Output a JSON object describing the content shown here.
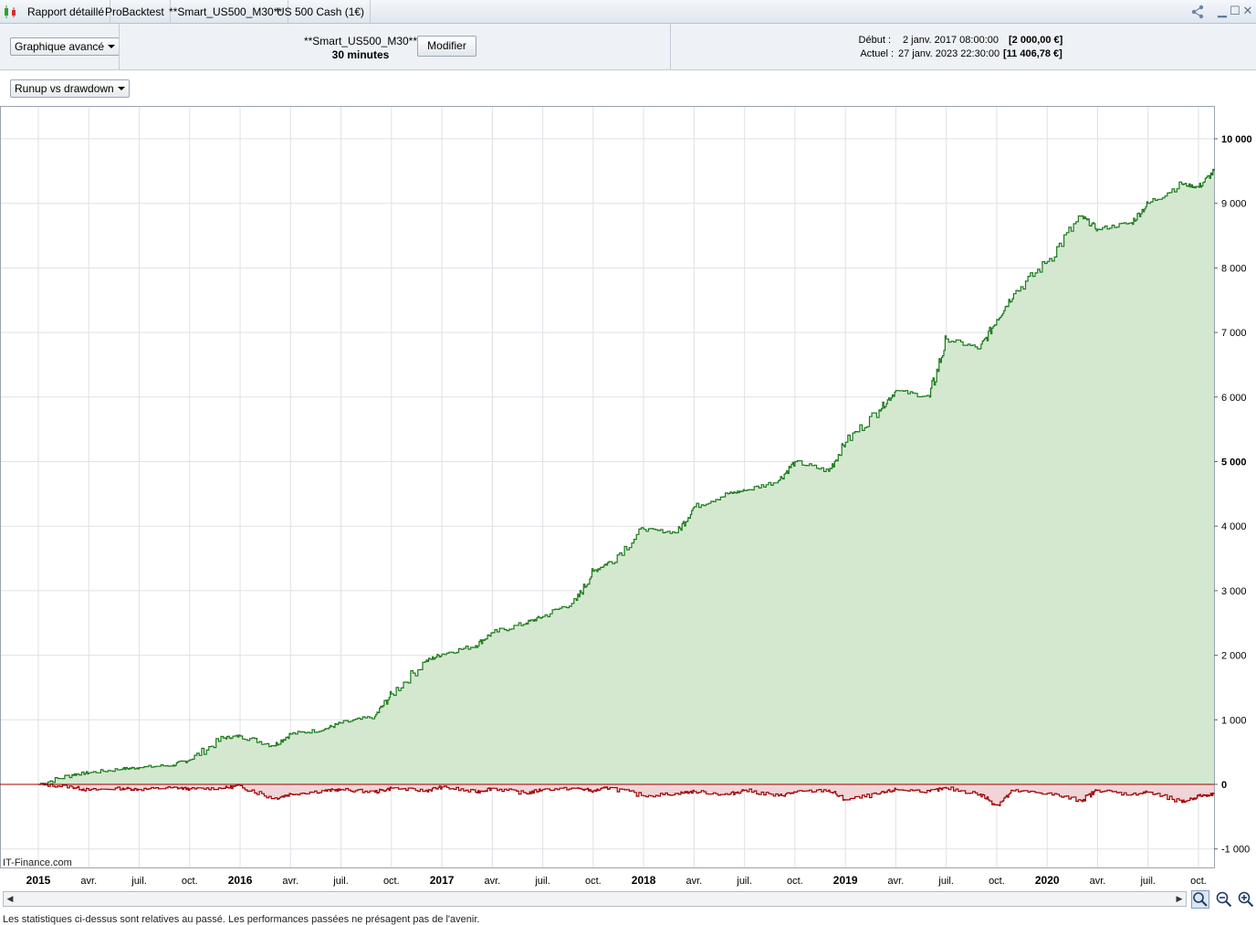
{
  "tabs": [
    "Rapport détaillé",
    "ProBacktest",
    "**Smart_US500_M30**",
    "US 500 Cash (1€)"
  ],
  "window": {
    "share_icon": "share-icon",
    "minimize_icon": "minimize-icon",
    "maximize_icon": "maximize-icon",
    "close_icon": "close-icon"
  },
  "toolbar": {
    "chart_mode": "Graphique avancé",
    "strategy_name": "**Smart_US500_M30**",
    "timeframe": "30 minutes",
    "modify_label": "Modifier",
    "start_label": "Début :",
    "start_date": "2 janv. 2017 08:00:00",
    "start_capital": "[2 000,00 €]",
    "current_label": "Actuel :",
    "current_date": "27 janv. 2023 22:30:00",
    "current_capital": "[11 406,78 €]"
  },
  "chart_selector": "Runup vs drawdown",
  "watermark": "IT-Finance.com",
  "disclaimer": "Les statistiques ci-dessus sont relatives au passé. Les performances passées ne présagent pas de l'avenir.",
  "colors": {
    "runup_line": "#1a7a1a",
    "runup_fill": "#d4e8d0",
    "drawdown_line": "#a00000",
    "drawdown_fill": "#f0d4d8",
    "grid": "#dde2e7"
  },
  "chart_data": {
    "type": "area",
    "title": "Runup vs drawdown",
    "y_tick_labels": [
      "10 000",
      "9 000",
      "8 000",
      "7 000",
      "6 000",
      "5 000",
      "4 000",
      "3 000",
      "2 000",
      "1 000",
      "0",
      "-1 000"
    ],
    "y_bold_labels": [
      "10 000",
      "5 000",
      "0"
    ],
    "ylim": [
      -1000,
      10000
    ],
    "x_tick_labels": [
      "2015",
      "avr.",
      "juil.",
      "oct.",
      "2016",
      "avr.",
      "juil.",
      "oct.",
      "2017",
      "avr.",
      "juil.",
      "oct.",
      "2018",
      "avr.",
      "juil.",
      "oct.",
      "2019",
      "avr.",
      "juil.",
      "oct.",
      "2020",
      "avr.",
      "juil.",
      "oct."
    ],
    "x_bold_labels": [
      "2015",
      "2016",
      "2017",
      "2018",
      "2019",
      "2020"
    ],
    "grid": true,
    "series": [
      {
        "name": "Runup",
        "x": [
          "2015-01",
          "2015-03",
          "2015-04",
          "2015-06",
          "2015-07",
          "2015-09",
          "2015-10",
          "2015-12",
          "2016-01",
          "2016-03",
          "2016-04",
          "2016-06",
          "2016-07",
          "2016-09",
          "2016-10",
          "2016-12",
          "2017-01",
          "2017-03",
          "2017-04",
          "2017-06",
          "2017-07",
          "2017-09",
          "2017-10",
          "2017-11",
          "2018-01",
          "2018-03",
          "2018-04",
          "2018-06",
          "2018-07",
          "2018-09",
          "2018-10",
          "2018-12",
          "2019-01",
          "2019-03",
          "2019-04",
          "2019-06",
          "2019-07",
          "2019-09",
          "2019-10",
          "2019-11",
          "2020-01",
          "2020-03",
          "2020-04",
          "2020-06",
          "2020-07",
          "2020-09",
          "2020-10",
          "2020-11"
        ],
        "values": [
          0,
          150,
          180,
          240,
          260,
          300,
          380,
          720,
          750,
          600,
          780,
          850,
          950,
          1050,
          1400,
          1900,
          2020,
          2150,
          2350,
          2500,
          2600,
          2850,
          3300,
          3450,
          3950,
          3900,
          4300,
          4500,
          4550,
          4700,
          5000,
          4850,
          5300,
          5800,
          6100,
          6000,
          6900,
          6750,
          7200,
          7600,
          8100,
          8800,
          8600,
          8700,
          9000,
          9300,
          9250,
          9500
        ]
      },
      {
        "name": "Drawdown",
        "x": [
          "2015-01",
          "2015-03",
          "2015-04",
          "2015-06",
          "2015-07",
          "2015-09",
          "2015-10",
          "2015-12",
          "2016-01",
          "2016-03",
          "2016-04",
          "2016-06",
          "2016-07",
          "2016-09",
          "2016-10",
          "2016-12",
          "2017-01",
          "2017-03",
          "2017-04",
          "2017-06",
          "2017-07",
          "2017-09",
          "2017-10",
          "2017-11",
          "2018-01",
          "2018-03",
          "2018-04",
          "2018-06",
          "2018-07",
          "2018-09",
          "2018-10",
          "2018-12",
          "2019-01",
          "2019-03",
          "2019-04",
          "2019-06",
          "2019-07",
          "2019-09",
          "2019-10",
          "2019-11",
          "2020-01",
          "2020-03",
          "2020-04",
          "2020-06",
          "2020-07",
          "2020-09",
          "2020-10",
          "2020-11"
        ],
        "values": [
          0,
          -40,
          -90,
          -60,
          -80,
          -50,
          -70,
          -60,
          -20,
          -220,
          -150,
          -100,
          -80,
          -120,
          -60,
          -100,
          -40,
          -120,
          -60,
          -140,
          -80,
          -60,
          -100,
          -50,
          -180,
          -140,
          -110,
          -160,
          -90,
          -180,
          -120,
          -90,
          -240,
          -150,
          -80,
          -110,
          -60,
          -150,
          -320,
          -100,
          -140,
          -250,
          -90,
          -160,
          -120,
          -280,
          -180,
          -150
        ]
      }
    ]
  }
}
